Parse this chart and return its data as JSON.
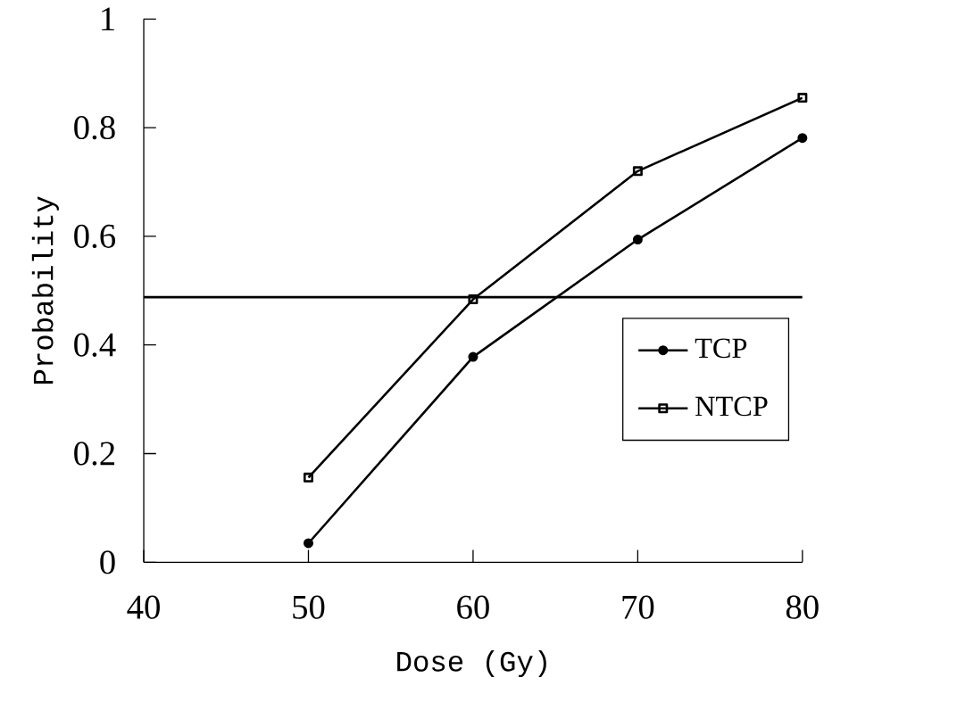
{
  "chart_data": {
    "type": "line",
    "xlabel": "Dose (Gy)",
    "ylabel": "Probability",
    "x": [
      50,
      60,
      70,
      80
    ],
    "series": [
      {
        "name": "TCP",
        "color": "#000000",
        "marker": "circle",
        "values": [
          0.035,
          0.378,
          0.594,
          0.781
        ]
      },
      {
        "name": "NTCP",
        "color": "#000000",
        "marker": "square",
        "values": [
          0.156,
          0.484,
          0.72,
          0.855
        ]
      }
    ],
    "xlim": [
      40,
      80
    ],
    "ylim": [
      0,
      1
    ],
    "xticks": [
      40,
      50,
      60,
      70,
      80
    ],
    "yticks": [
      0,
      0.2,
      0.4,
      0.6,
      0.8,
      1
    ],
    "ref_lines": [
      {
        "axis": "y",
        "value": 0.488,
        "color": "#000000"
      }
    ],
    "legend": "right",
    "grid": false
  }
}
